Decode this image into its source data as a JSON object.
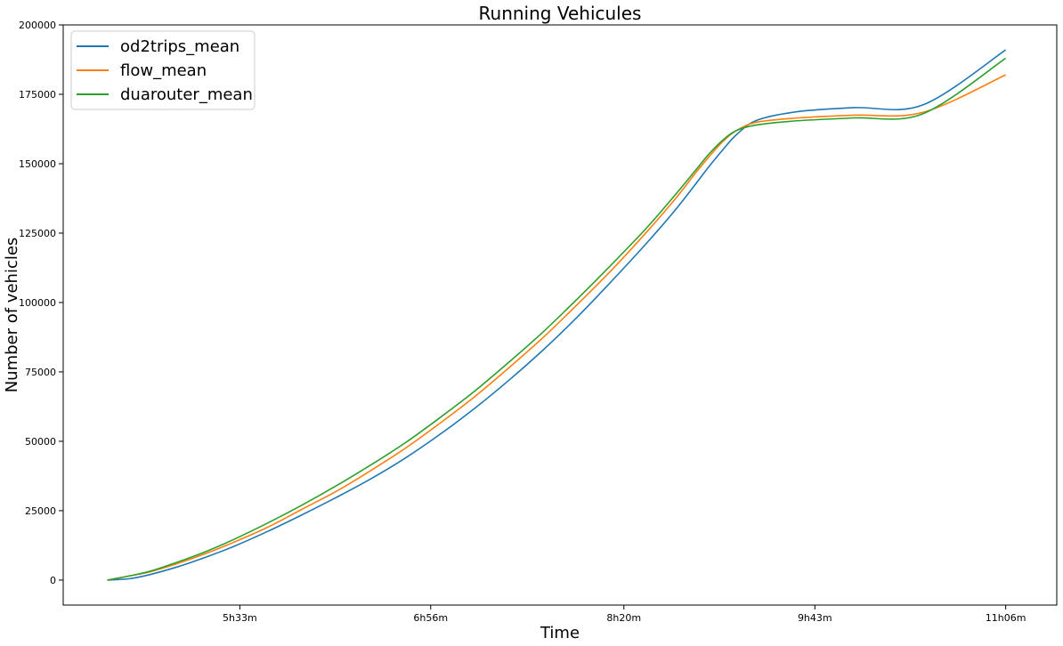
{
  "chart_data": {
    "type": "line",
    "title": "Running Vehicules",
    "xlabel": "Time",
    "ylabel": "Number of vehicles",
    "x_unit": "hours of day",
    "xlim": [
      4.27,
      11.47
    ],
    "ylim": [
      -9000,
      200000
    ],
    "y_ticks": [
      0,
      25000,
      50000,
      75000,
      100000,
      125000,
      150000,
      175000,
      200000
    ],
    "x_ticks": [
      {
        "value": 5.55,
        "label": "5h33m"
      },
      {
        "value": 6.933,
        "label": "6h56m"
      },
      {
        "value": 8.333,
        "label": "8h20m"
      },
      {
        "value": 9.717,
        "label": "9h43m"
      },
      {
        "value": 11.1,
        "label": "11h06m"
      }
    ],
    "grid": false,
    "legend_position": "top-left",
    "series": [
      {
        "name": "od2trips_mean",
        "color": "#1f77b4",
        "x": [
          4.59,
          4.75,
          4.9,
          5.1,
          5.3,
          5.5,
          5.75,
          6.0,
          6.25,
          6.5,
          6.75,
          7.0,
          7.25,
          7.5,
          7.75,
          8.0,
          8.25,
          8.5,
          8.7,
          8.85,
          8.95,
          9.05,
          9.15,
          9.3,
          9.6,
          10.0,
          10.5,
          11.1
        ],
        "y": [
          0,
          500,
          2000,
          4800,
          8200,
          12000,
          17500,
          23500,
          29800,
          36500,
          44000,
          52500,
          61800,
          72000,
          83000,
          95000,
          108000,
          121500,
          133000,
          142500,
          149000,
          155000,
          160500,
          165700,
          168800,
          170200,
          171200,
          191000
        ]
      },
      {
        "name": "flow_mean",
        "color": "#ff7f0e",
        "x": [
          4.59,
          4.75,
          4.9,
          5.1,
          5.3,
          5.5,
          5.75,
          6.0,
          6.25,
          6.5,
          6.75,
          7.0,
          7.25,
          7.5,
          7.75,
          8.0,
          8.25,
          8.5,
          8.7,
          8.85,
          8.95,
          9.05,
          9.15,
          9.3,
          9.6,
          10.0,
          10.5,
          11.1
        ],
        "y": [
          0,
          1500,
          3000,
          6000,
          9500,
          13500,
          19000,
          25500,
          32000,
          39500,
          47500,
          56500,
          66000,
          76500,
          87500,
          99500,
          112000,
          125500,
          137000,
          146500,
          152500,
          158000,
          162000,
          165000,
          166500,
          167500,
          168500,
          182000
        ]
      },
      {
        "name": "duarouter_mean",
        "color": "#2ca02c",
        "x": [
          4.59,
          4.75,
          4.9,
          5.1,
          5.3,
          5.5,
          5.75,
          6.0,
          6.25,
          6.5,
          6.75,
          7.0,
          7.25,
          7.5,
          7.75,
          8.0,
          8.25,
          8.5,
          8.7,
          8.85,
          8.95,
          9.05,
          9.15,
          9.3,
          9.6,
          10.0,
          10.5,
          11.1
        ],
        "y": [
          0,
          1500,
          3200,
          6500,
          10200,
          14500,
          20500,
          27000,
          34000,
          41500,
          49500,
          58500,
          68000,
          78500,
          89500,
          101500,
          114000,
          127000,
          138500,
          147500,
          153500,
          158500,
          162000,
          164000,
          165500,
          166500,
          168000,
          188000
        ]
      }
    ]
  }
}
